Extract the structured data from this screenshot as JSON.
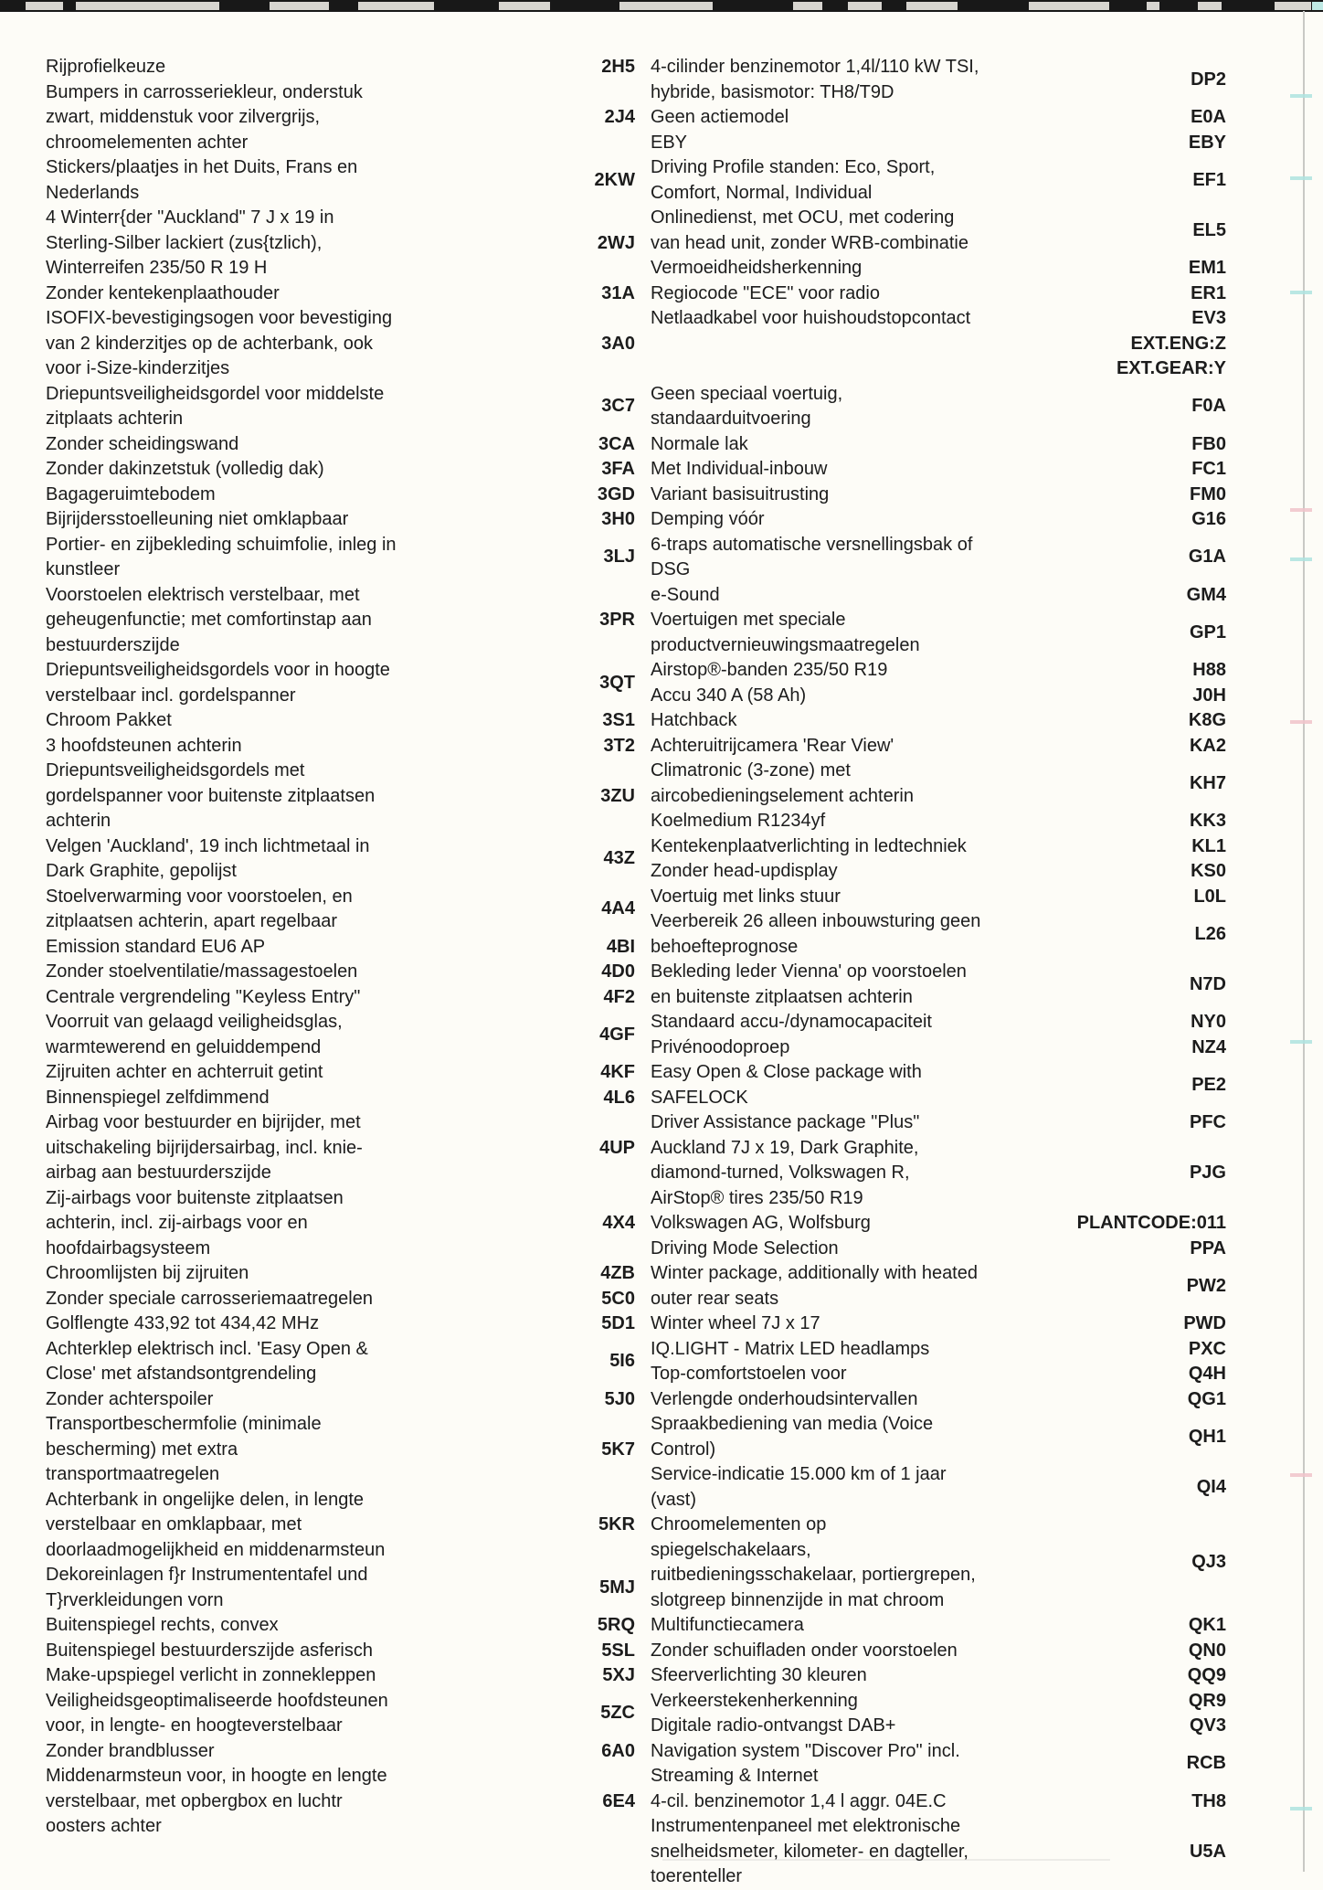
{
  "page": {
    "type": "scanned vehicle equipment code list",
    "language": "Dutch",
    "colors": {
      "background": "#fdfcf7",
      "text": "#1c1c1c",
      "strip_dark": "#181818",
      "strip_light": "#d7d5d0",
      "artifact_line": "#c9c9c5",
      "artifact_cyan": "#aee3df",
      "artifact_pink": "#f0c3ca"
    }
  },
  "left_column": {
    "entries": [
      {
        "text": "Rijprofielkeuze",
        "code": "2H5"
      },
      {
        "text": "Bumpers in carrosseriekleur, onderstuk zwart, middenstuk voor zilvergrijs, chroomelementen achter",
        "code": "2J4"
      },
      {
        "text": "Stickers/plaatjes in het Duits, Frans en Nederlands",
        "code": "2KW"
      },
      {
        "text": "4 Winterr{der \"Auckland\" 7 J x 19 in Sterling-Silber lackiert (zus{tzlich), Winterreifen 235/50 R 19 H",
        "code": "2WJ"
      },
      {
        "text": "Zonder kentekenplaathouder",
        "code": "31A"
      },
      {
        "text": "ISOFIX-bevestigingsogen voor bevestiging van 2 kinderzitjes op de achterbank, ook voor i-Size-kinderzitjes",
        "code": "3A0"
      },
      {
        "text": "Driepuntsveiligheidsgordel voor middelste zitplaats achterin",
        "code": "3C7"
      },
      {
        "text": "Zonder scheidingswand",
        "code": "3CA"
      },
      {
        "text": "Zonder dakinzetstuk (volledig dak)",
        "code": "3FA"
      },
      {
        "text": "Bagageruimtebodem",
        "code": "3GD"
      },
      {
        "text": "Bijrijdersstoelleuning niet omklapbaar",
        "code": "3H0"
      },
      {
        "text": "Portier- en zijbekleding schuimfolie, inleg in kunstleer",
        "code": "3LJ"
      },
      {
        "text": "Voorstoelen elektrisch verstelbaar, met geheugenfunctie; met comfortinstap aan bestuurderszijde",
        "code": "3PR"
      },
      {
        "text": "Driepuntsveiligheidsgordels voor in hoogte verstelbaar incl. gordelspanner",
        "code": "3QT"
      },
      {
        "text": "Chroom Pakket",
        "code": "3S1"
      },
      {
        "text": "3 hoofdsteunen achterin",
        "code": "3T2"
      },
      {
        "text": "Driepuntsveiligheidsgordels met gordelspanner voor buitenste zitplaatsen achterin",
        "code": "3ZU"
      },
      {
        "text": "Velgen 'Auckland', 19 inch lichtmetaal in Dark Graphite, gepolijst",
        "code": "43Z"
      },
      {
        "text": "Stoelverwarming voor voorstoelen, en zitplaatsen achterin, apart regelbaar",
        "code": "4A4"
      },
      {
        "text": "Emission standard EU6 AP",
        "code": "4BI"
      },
      {
        "text": "Zonder stoelventilatie/massagestoelen",
        "code": "4D0"
      },
      {
        "text": "Centrale vergrendeling \"Keyless Entry\"",
        "code": "4F2"
      },
      {
        "text": "Voorruit van gelaagd veiligheidsglas, warmtewerend en geluiddempend",
        "code": "4GF"
      },
      {
        "text": "Zijruiten achter en achterruit getint",
        "code": "4KF"
      },
      {
        "text": "Binnenspiegel zelfdimmend",
        "code": "4L6"
      },
      {
        "text": "Airbag voor bestuurder en bijrijder, met uitschakeling bijrijdersairbag, incl. knie-airbag aan bestuurderszijde",
        "code": "4UP"
      },
      {
        "text": "Zij-airbags voor buitenste zitplaatsen achterin, incl. zij-airbags voor en hoofdairbagsysteem",
        "code": "4X4"
      },
      {
        "text": "Chroomlijsten bij zijruiten",
        "code": "4ZB"
      },
      {
        "text": "Zonder speciale carrosseriemaatregelen",
        "code": "5C0"
      },
      {
        "text": "Golflengte 433,92 tot 434,42 MHz",
        "code": "5D1"
      },
      {
        "text": "Achterklep elektrisch incl. 'Easy Open & Close' met afstandsontgrendeling",
        "code": "5I6"
      },
      {
        "text": "Zonder achterspoiler",
        "code": "5J0"
      },
      {
        "text": "Transportbeschermfolie (minimale bescherming) met extra transportmaatregelen",
        "code": "5K7"
      },
      {
        "text": "Achterbank in ongelijke delen, in lengte verstelbaar en omklapbaar, met doorlaadmogelijkheid en middenarmsteun",
        "code": "5KR"
      },
      {
        "text": "Dekoreinlagen f}r Instrumententafel und T}rverkleidungen vorn",
        "code": "5MJ"
      },
      {
        "text": "Buitenspiegel rechts, convex",
        "code": "5RQ"
      },
      {
        "text": "Buitenspiegel bestuurderszijde asferisch",
        "code": "5SL"
      },
      {
        "text": "Make-upspiegel verlicht in zonnekleppen",
        "code": "5XJ"
      },
      {
        "text": "Veiligheidsgeoptimaliseerde hoofdsteunen voor, in lengte- en hoogteverstelbaar",
        "code": "5ZC"
      },
      {
        "text": "Zonder brandblusser",
        "code": "6A0"
      },
      {
        "text": "Middenarmsteun voor, in hoogte en lengte verstelbaar, met opbergbox en luchtr oosters achter",
        "code": "6E4"
      }
    ]
  },
  "right_column": {
    "entries": [
      {
        "text": "4-cilinder benzinemotor 1,4l/110 kW TSI, hybride, basismotor: TH8/T9D",
        "code": "DP2"
      },
      {
        "text": "Geen actiemodel",
        "code": "E0A"
      },
      {
        "text": "EBY",
        "code": "EBY"
      },
      {
        "text": "Driving Profile standen: Eco, Sport, Comfort, Normal, Individual",
        "code": "EF1"
      },
      {
        "text": "Onlinedienst, met OCU, met codering van head unit, zonder WRB-combinatie",
        "code": "EL5"
      },
      {
        "text": "Vermoeidheidsherkenning",
        "code": "EM1"
      },
      {
        "text": "Regiocode \"ECE\" voor radio",
        "code": "ER1"
      },
      {
        "text": "Netlaadkabel voor huishoudstopcontact",
        "code": "EV3"
      },
      {
        "text": "",
        "code": "EXT.ENG:Z"
      },
      {
        "text": "",
        "code": "EXT.GEAR:Y"
      },
      {
        "text": "Geen speciaal voertuig, standaarduitvoering",
        "code": "F0A"
      },
      {
        "text": "Normale lak",
        "code": "FB0"
      },
      {
        "text": "Met Individual-inbouw",
        "code": "FC1"
      },
      {
        "text": "Variant basisuitrusting",
        "code": "FM0"
      },
      {
        "text": "Demping vóór",
        "code": "G16"
      },
      {
        "text": "6-traps automatische versnellingsbak of DSG",
        "code": "G1A"
      },
      {
        "text": "e-Sound",
        "code": "GM4"
      },
      {
        "text": "Voertuigen met speciale productvernieuwingsmaatregelen",
        "code": "GP1"
      },
      {
        "text": "Airstop®-banden 235/50 R19",
        "code": "H88"
      },
      {
        "text": "Accu 340 A (58 Ah)",
        "code": "J0H"
      },
      {
        "text": "Hatchback",
        "code": "K8G"
      },
      {
        "text": "Achteruitrijcamera 'Rear View'",
        "code": "KA2"
      },
      {
        "text": "Climatronic (3-zone) met aircobedieningselement achterin",
        "code": "KH7"
      },
      {
        "text": "Koelmedium R1234yf",
        "code": "KK3"
      },
      {
        "text": "Kentekenplaatverlichting in ledtechniek",
        "code": "KL1"
      },
      {
        "text": "Zonder head-updisplay",
        "code": "KS0"
      },
      {
        "text": "Voertuig met links stuur",
        "code": "L0L"
      },
      {
        "text": "Veerbereik 26 alleen inbouwsturing geen behoefteprognose",
        "code": "L26"
      },
      {
        "text": "Bekleding leder Vienna' op voorstoelen en buitenste zitplaatsen achterin",
        "code": "N7D"
      },
      {
        "text": "Standaard accu-/dynamocapaciteit",
        "code": "NY0"
      },
      {
        "text": "Privénoodoproep",
        "code": "NZ4"
      },
      {
        "text": "Easy Open & Close package with SAFELOCK",
        "code": "PE2"
      },
      {
        "text": "Driver Assistance package \"Plus\"",
        "code": "PFC"
      },
      {
        "text": "Auckland 7J x 19, Dark Graphite, diamond-turned, Volkswagen R, AirStop® tires 235/50 R19",
        "code": "PJG"
      },
      {
        "text": "Volkswagen AG, Wolfsburg",
        "code": "PLANTCODE:011"
      },
      {
        "text": "Driving Mode Selection",
        "code": "PPA"
      },
      {
        "text": "Winter package, additionally with heated outer rear seats",
        "code": "PW2"
      },
      {
        "text": "Winter wheel 7J x 17",
        "code": "PWD"
      },
      {
        "text": "IQ.LIGHT - Matrix LED headlamps",
        "code": "PXC"
      },
      {
        "text": "Top-comfortstoelen voor",
        "code": "Q4H"
      },
      {
        "text": "Verlengde onderhoudsintervallen",
        "code": "QG1"
      },
      {
        "text": "Spraakbediening van media (Voice Control)",
        "code": "QH1"
      },
      {
        "text": "Service-indicatie 15.000 km of 1 jaar (vast)",
        "code": "QI4"
      },
      {
        "text": "Chroomelementen op spiegelschakelaars, ruitbedieningsschakelaar, portiergrepen, slotgreep binnenzijde in mat chroom",
        "code": "QJ3"
      },
      {
        "text": "Multifunctiecamera",
        "code": "QK1"
      },
      {
        "text": "Zonder schuifladen onder voorstoelen",
        "code": "QN0"
      },
      {
        "text": "Sfeerverlichting 30 kleuren",
        "code": "QQ9"
      },
      {
        "text": "Verkeerstekenherkenning",
        "code": "QR9"
      },
      {
        "text": "Digitale radio-ontvangst DAB+",
        "code": "QV3"
      },
      {
        "text": "Navigation system \"Discover Pro\" incl. Streaming & Internet",
        "code": "RCB"
      },
      {
        "text": "4-cil. benzinemotor 1,4 l aggr. 04E.C",
        "code": "TH8"
      },
      {
        "text": "Instrumentenpaneel met elektronische snelheidsmeter, kilometer- en dagteller, toerenteller",
        "code": "U5A"
      }
    ]
  }
}
